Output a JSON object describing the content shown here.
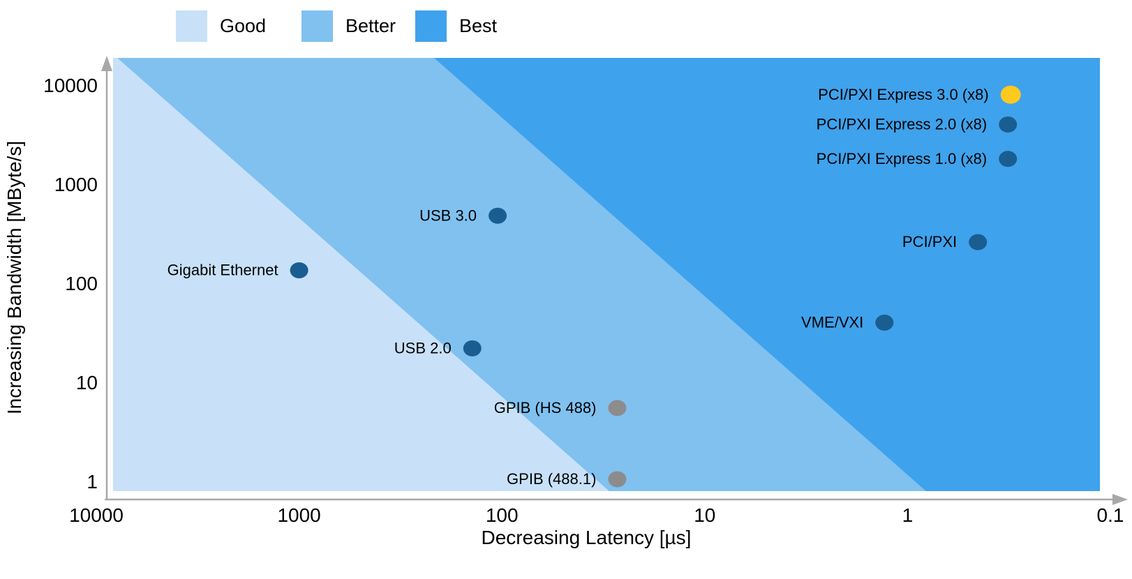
{
  "colors": {
    "good": "#C8E1F8",
    "better": "#80C1F0",
    "best": "#3FA2EC",
    "dot_blue": "#1A5D91",
    "dot_gray": "#8C8C8C",
    "dot_gold": "#FFC91F",
    "axis": "#A8A8A8",
    "text": "#000000",
    "background": "#FFFFFF"
  },
  "legend": {
    "items": [
      {
        "label": "Good",
        "color_key": "good"
      },
      {
        "label": "Better",
        "color_key": "better"
      },
      {
        "label": "Best",
        "color_key": "best"
      }
    ]
  },
  "chart_data": {
    "type": "scatter",
    "title": "",
    "xlabel": "Decreasing Latency [µs]",
    "ylabel": "Increasing Bandwidth [MByte/s]",
    "x_axis": {
      "scale": "log",
      "direction": "decreasing",
      "ticks": [
        10000,
        1000,
        100,
        10,
        1,
        0.1
      ],
      "range": [
        10000,
        0.1
      ]
    },
    "y_axis": {
      "scale": "log",
      "ticks": [
        1,
        10,
        100,
        1000,
        10000
      ],
      "range": [
        1,
        20000
      ]
    },
    "regions": [
      {
        "name": "Good",
        "color_key": "good",
        "position": "lower-left band"
      },
      {
        "name": "Better",
        "color_key": "better",
        "position": "middle diagonal band"
      },
      {
        "name": "Best",
        "color_key": "best",
        "position": "upper-right band"
      }
    ],
    "points": [
      {
        "label": "PCI/PXI Express 3.0 (x8)",
        "latency_us": 0.31,
        "bandwidth_MBps": 8000,
        "color_key": "dot_gold"
      },
      {
        "label": "PCI/PXI Express 2.0 (x8)",
        "latency_us": 0.32,
        "bandwidth_MBps": 4000,
        "color_key": "dot_blue"
      },
      {
        "label": "PCI/PXI Express 1.0 (x8)",
        "latency_us": 0.32,
        "bandwidth_MBps": 1800,
        "color_key": "dot_blue"
      },
      {
        "label": "USB 3.0",
        "latency_us": 105,
        "bandwidth_MBps": 480,
        "color_key": "dot_blue"
      },
      {
        "label": "PCI/PXI",
        "latency_us": 0.45,
        "bandwidth_MBps": 260,
        "color_key": "dot_blue"
      },
      {
        "label": "Gigabit Ethernet",
        "latency_us": 1000,
        "bandwidth_MBps": 135,
        "color_key": "dot_blue"
      },
      {
        "label": "VME/VXI",
        "latency_us": 1.3,
        "bandwidth_MBps": 40,
        "color_key": "dot_blue"
      },
      {
        "label": "USB 2.0",
        "latency_us": 140,
        "bandwidth_MBps": 22,
        "color_key": "dot_blue"
      },
      {
        "label": "GPIB (HS 488)",
        "latency_us": 27,
        "bandwidth_MBps": 5.5,
        "color_key": "dot_gray"
      },
      {
        "label": "GPIB (488.1)",
        "latency_us": 27,
        "bandwidth_MBps": 1.05,
        "color_key": "dot_gray"
      }
    ]
  }
}
